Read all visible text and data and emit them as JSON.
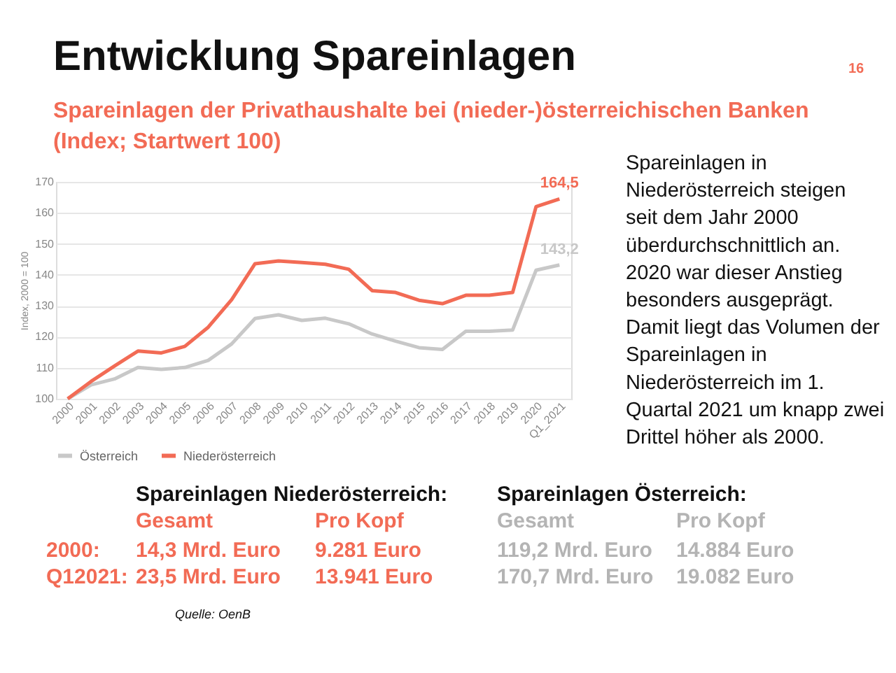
{
  "chart_data": {
    "type": "line",
    "title": "Entwicklung Spareinlagen",
    "subtitle": "Spareinlagen der Privathaushalte bei (nieder-)österreichischen Banken (Index; Startwert 100)",
    "ylabel": "Index, 2000 = 100",
    "categories": [
      "2000",
      "2001",
      "2002",
      "2003",
      "2004",
      "2005",
      "2006",
      "2007",
      "2008",
      "2009",
      "2010",
      "2011",
      "2012",
      "2013",
      "2014",
      "2015",
      "2016",
      "2017",
      "2018",
      "2019",
      "2020",
      "Q1_2021"
    ],
    "series": [
      {
        "name": "Österreich",
        "color": "#c8c8c8",
        "values": [
          100,
          104.5,
          106.4,
          110.1,
          109.5,
          110.1,
          112.4,
          117.7,
          125.9,
          127.1,
          125.3,
          126.0,
          124.2,
          120.9,
          118.6,
          116.5,
          115.9,
          121.8,
          121.8,
          122.2,
          141.5,
          143.2
        ],
        "value_labels": [
          null,
          null,
          null,
          null,
          null,
          null,
          null,
          null,
          null,
          null,
          null,
          null,
          null,
          null,
          null,
          null,
          null,
          null,
          null,
          null,
          null,
          "143,2"
        ]
      },
      {
        "name": "Niederösterreich",
        "color": "#f26b55",
        "values": [
          100,
          105.6,
          110.6,
          115.4,
          114.8,
          116.9,
          123.1,
          132.0,
          143.6,
          144.5,
          144.0,
          143.4,
          141.8,
          134.9,
          134.3,
          131.8,
          130.7,
          133.4,
          133.4,
          134.3,
          162.0,
          164.5
        ],
        "value_labels": [
          null,
          null,
          null,
          null,
          null,
          null,
          null,
          null,
          null,
          null,
          null,
          null,
          null,
          null,
          null,
          null,
          null,
          null,
          null,
          null,
          null,
          "164,5"
        ]
      }
    ],
    "ylim": [
      100,
      170
    ],
    "yticks": [
      100,
      110,
      120,
      130,
      140,
      150,
      160,
      170
    ],
    "grid": "y",
    "legend": "bottom",
    "annotations": [
      "16",
      "Spareinlagen in Niederösterreich steigen seit dem Jahr 2000 überdurchschnittlich an.",
      "2020 war dieser Anstieg besonders ausgeprägt.",
      "Damit liegt das Volumen der Spareinlagen in Niederösterreich im 1. Quartal 2021 um knapp zwei Drittel höher als 2000.",
      "Spareinlagen Niederösterreich:",
      "Spareinlagen Österreich:",
      "Gesamt",
      "Pro Kopf",
      "Gesamt",
      "Pro Kopf",
      "2000:",
      "14,3 Mrd. Euro",
      "9.281 Euro",
      "119,2 Mrd. Euro",
      "14.884 Euro",
      "Q12021:",
      "23,5 Mrd. Euro",
      "13.941 Euro",
      "170,7 Mrd. Euro",
      "19.082 Euro",
      "Quelle: OenB"
    ]
  }
}
